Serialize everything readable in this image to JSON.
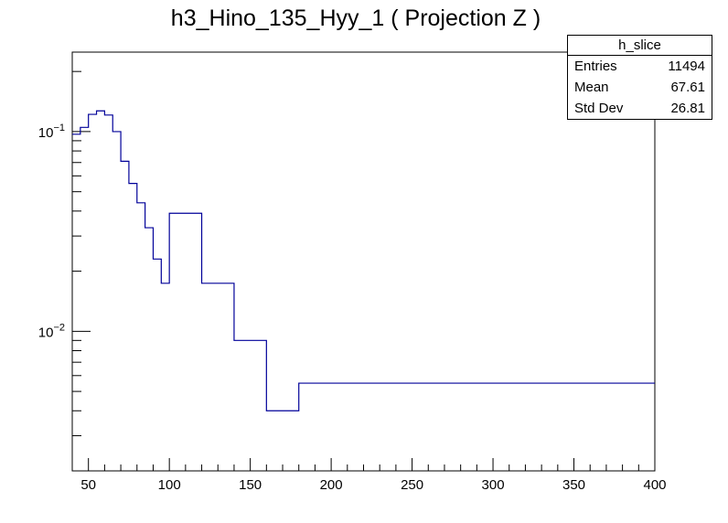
{
  "chart_data": {
    "type": "line",
    "title": "h3_Hino_135_Hyy_1 ( Projection Z )",
    "xlabel": "",
    "ylabel": "",
    "xlim": [
      40,
      400
    ],
    "ylim": [
      0.002,
      0.25
    ],
    "yscale": "log",
    "x_ticks": [
      50,
      100,
      150,
      200,
      250,
      300,
      350,
      400
    ],
    "y_ticks": [
      {
        "value": 0.1,
        "base": "10",
        "exp": "−1"
      },
      {
        "value": 0.01,
        "base": "10",
        "exp": "−2"
      }
    ],
    "series": [
      {
        "name": "h_slice",
        "color": "#000099",
        "bin_edges": [
          40,
          45,
          50,
          55,
          60,
          65,
          70,
          75,
          80,
          85,
          90,
          95,
          100,
          120,
          140,
          160,
          180,
          400
        ],
        "values": [
          0.097,
          0.105,
          0.122,
          0.127,
          0.121,
          0.1,
          0.071,
          0.055,
          0.044,
          0.033,
          0.023,
          0.0174,
          0.039,
          0.0174,
          0.009,
          0.004,
          0.0055
        ]
      }
    ]
  },
  "stats": {
    "name": "h_slice",
    "rows": [
      {
        "label": "Entries",
        "value": "11494"
      },
      {
        "label": "Mean",
        "value": "67.61"
      },
      {
        "label": "Std Dev",
        "value": "26.81"
      }
    ]
  }
}
